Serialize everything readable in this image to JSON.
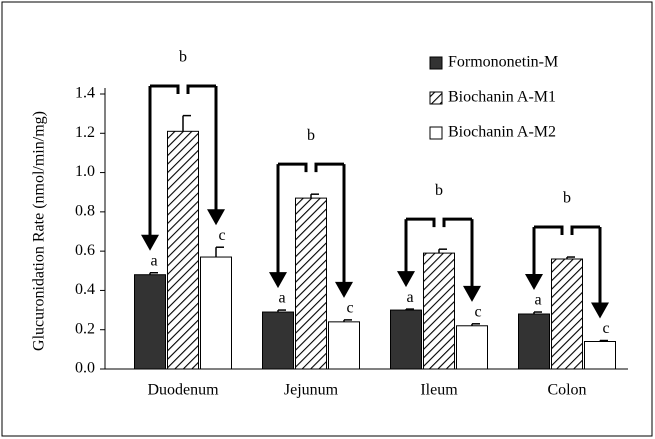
{
  "chart_data": {
    "type": "bar",
    "y_label": "Glucuronidation Rate (nmol/min/mg)",
    "categories": [
      "Duodenum",
      "Jejunum",
      "Ileum",
      "Colon"
    ],
    "series": [
      {
        "name": "Formononetin-M",
        "color": "#333333",
        "values": [
          0.48,
          0.29,
          0.3,
          0.28
        ],
        "errors": [
          0.01,
          0.01,
          0.005,
          0.01
        ]
      },
      {
        "name": "Biochanin A-M1",
        "color": "hatch",
        "values": [
          1.21,
          0.87,
          0.59,
          0.56
        ],
        "errors": [
          0.08,
          0.02,
          0.02,
          0.01
        ]
      },
      {
        "name": "Biochanin A-M2",
        "color": "#ffffff",
        "values": [
          0.57,
          0.24,
          0.22,
          0.14
        ],
        "errors": [
          0.05,
          0.01,
          0.01,
          0.005
        ]
      }
    ],
    "letters": [
      [
        "a",
        "b",
        "c"
      ],
      [
        "a",
        "b",
        "c"
      ],
      [
        "a",
        "b",
        "c"
      ],
      [
        "a",
        "b",
        "c"
      ]
    ],
    "ylim": [
      0,
      1.4
    ],
    "yticks": [
      {
        "value": 0,
        "label": "0.0"
      },
      0.2,
      0.4,
      0.6,
      0.8,
      {
        "value": 1,
        "label": "1.0"
      },
      1.2,
      1.4
    ],
    "legend": "upper right"
  }
}
